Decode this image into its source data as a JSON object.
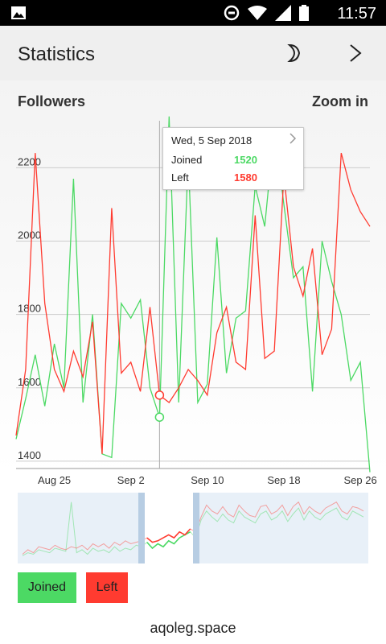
{
  "status_bar": {
    "time": "11:57"
  },
  "app_bar": {
    "title": "Statistics"
  },
  "chart_header": {
    "title": "Followers",
    "zoom_label": "Zoom in"
  },
  "tooltip": {
    "date": "Wed, 5 Sep 2018",
    "rows": [
      {
        "label": "Joined",
        "value": "1520"
      },
      {
        "label": "Left",
        "value": "1580"
      }
    ]
  },
  "legend": [
    {
      "label": "Joined",
      "color": "#4cd964"
    },
    {
      "label": "Left",
      "color": "#ff3b30"
    }
  ],
  "footer": "aqoleg.space",
  "colors": {
    "joined": "#4cd964",
    "left": "#ff3b30",
    "grid": "#cccccc",
    "window": "#b7cde3",
    "preview_bg": "#e8f0f8"
  },
  "chart_data": {
    "type": "line",
    "title": "Followers",
    "y_ticks": [
      1400,
      1600,
      1800,
      2000,
      2200
    ],
    "x_ticks": [
      "Aug 25",
      "Sep 2",
      "Sep 10",
      "Sep 18",
      "Sep 26"
    ],
    "ylim": [
      1380,
      2350
    ],
    "x": [
      "Aug 21",
      "Aug 22",
      "Aug 23",
      "Aug 24",
      "Aug 25",
      "Aug 26",
      "Aug 27",
      "Aug 28",
      "Aug 29",
      "Aug 30",
      "Aug 31",
      "Sep 1",
      "Sep 2",
      "Sep 3",
      "Sep 4",
      "Sep 5",
      "Sep 6",
      "Sep 7",
      "Sep 8",
      "Sep 9",
      "Sep 10",
      "Sep 11",
      "Sep 12",
      "Sep 13",
      "Sep 14",
      "Sep 15",
      "Sep 16",
      "Sep 17",
      "Sep 18",
      "Sep 19",
      "Sep 20",
      "Sep 21",
      "Sep 22",
      "Sep 23",
      "Sep 24",
      "Sep 25",
      "Sep 26",
      "Sep 27"
    ],
    "series": [
      {
        "name": "Joined",
        "color": "#4cd964",
        "values": [
          1460,
          1570,
          1690,
          1550,
          1720,
          1600,
          2170,
          1560,
          1800,
          1420,
          1410,
          1830,
          1790,
          1840,
          1600,
          1520,
          2340,
          1560,
          2230,
          1560,
          1610,
          2010,
          1640,
          1790,
          1810,
          2150,
          2040,
          2310,
          2100,
          1900,
          1930,
          1590,
          2000,
          1890,
          1800,
          1620,
          1670,
          1370
        ]
      },
      {
        "name": "Left",
        "color": "#ff3b30",
        "values": [
          1470,
          1650,
          2240,
          1830,
          1650,
          1590,
          1700,
          1630,
          1780,
          1420,
          2090,
          1640,
          1670,
          1590,
          1820,
          1580,
          1560,
          1600,
          1650,
          1620,
          1580,
          1750,
          1820,
          1670,
          1650,
          2070,
          1680,
          1700,
          2180,
          1930,
          1850,
          1980,
          1690,
          1760,
          2240,
          2140,
          2080,
          2040
        ]
      }
    ],
    "preview": {
      "joined": [
        1460,
        1480,
        1470,
        1500,
        1490,
        1480,
        1510,
        1500,
        1490,
        1820,
        1480,
        1500,
        1470,
        1510,
        1490,
        1500,
        1480,
        1520,
        1490,
        1510,
        1500,
        1530,
        1520,
        1550,
        1510,
        1540,
        1520,
        1560,
        1540,
        1580,
        1600,
        1620,
        1580,
        1700,
        1760,
        1720,
        1690,
        1740,
        1700,
        1680,
        1760,
        1720,
        1700,
        1680,
        1740,
        1760,
        1700,
        1720,
        1760,
        1690,
        1740,
        1780,
        1700,
        1760,
        1720,
        1700,
        1740,
        1760,
        1780,
        1720,
        1700,
        1760,
        1740,
        1720
      ],
      "left": [
        1470,
        1500,
        1480,
        1520,
        1510,
        1500,
        1530,
        1510,
        1500,
        1520,
        1510,
        1530,
        1500,
        1540,
        1520,
        1540,
        1510,
        1550,
        1530,
        1560,
        1540,
        1550,
        1560,
        1580,
        1550,
        1560,
        1580,
        1600,
        1580,
        1620,
        1600,
        1640,
        1620,
        1720,
        1800,
        1760,
        1740,
        1790,
        1740,
        1720,
        1800,
        1760,
        1730,
        1720,
        1790,
        1800,
        1740,
        1760,
        1800,
        1730,
        1790,
        1820,
        1740,
        1790,
        1760,
        1740,
        1780,
        1800,
        1820,
        1760,
        1740,
        1790,
        1780,
        1760
      ]
    }
  }
}
